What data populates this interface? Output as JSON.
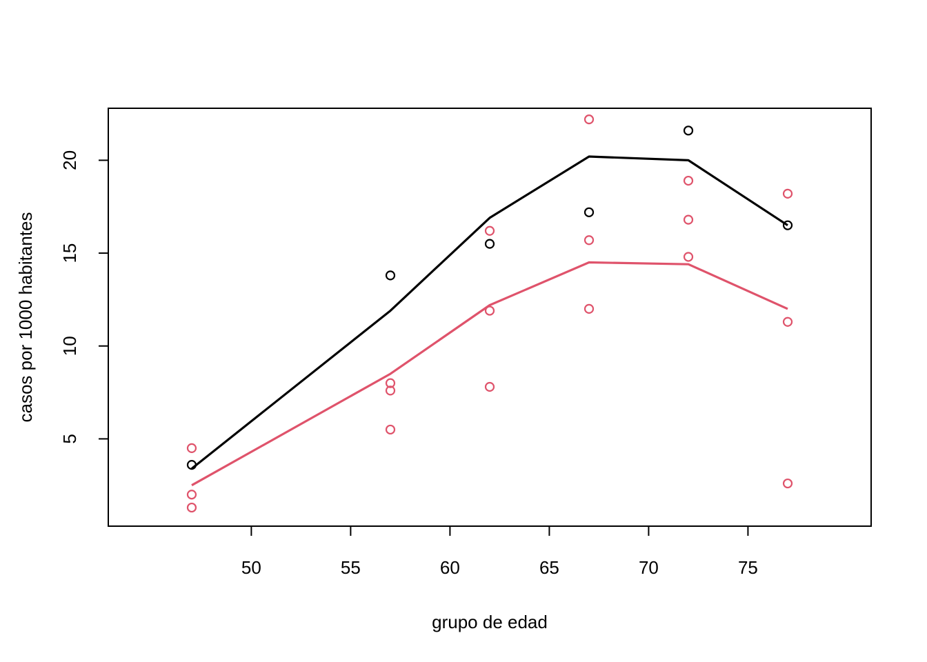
{
  "chart_data": {
    "type": "scatter",
    "title": "",
    "xlabel": "grupo de edad",
    "ylabel": "casos por 1000 habitantes",
    "xlim": [
      42.8,
      81.2
    ],
    "ylim": [
      0.3,
      22.8
    ],
    "xticks": [
      50,
      55,
      60,
      65,
      70,
      75
    ],
    "yticks": [
      5,
      10,
      15,
      20
    ],
    "grid": false,
    "legend": "none",
    "series": [
      {
        "color": "#000000",
        "points": [
          {
            "x": 47,
            "y": 3.6
          },
          {
            "x": 57,
            "y": 13.8
          },
          {
            "x": 62,
            "y": 15.5
          },
          {
            "x": 67,
            "y": 17.2
          },
          {
            "x": 72,
            "y": 21.6
          },
          {
            "x": 77,
            "y": 16.5
          }
        ],
        "line": [
          {
            "x": 47,
            "y": 3.4
          },
          {
            "x": 57,
            "y": 11.9
          },
          {
            "x": 62,
            "y": 16.9
          },
          {
            "x": 67,
            "y": 20.2
          },
          {
            "x": 72,
            "y": 20.0
          },
          {
            "x": 77,
            "y": 16.5
          }
        ]
      },
      {
        "color": "#DF536B",
        "points": [
          {
            "x": 47,
            "y": 4.5
          },
          {
            "x": 47,
            "y": 2.0
          },
          {
            "x": 47,
            "y": 1.3
          },
          {
            "x": 57,
            "y": 8.0
          },
          {
            "x": 57,
            "y": 7.6
          },
          {
            "x": 57,
            "y": 5.5
          },
          {
            "x": 62,
            "y": 16.2
          },
          {
            "x": 62,
            "y": 11.9
          },
          {
            "x": 62,
            "y": 7.8
          },
          {
            "x": 67,
            "y": 22.2
          },
          {
            "x": 67,
            "y": 15.7
          },
          {
            "x": 67,
            "y": 12.0
          },
          {
            "x": 72,
            "y": 18.9
          },
          {
            "x": 72,
            "y": 16.8
          },
          {
            "x": 72,
            "y": 14.8
          },
          {
            "x": 77,
            "y": 18.2
          },
          {
            "x": 77,
            "y": 11.3
          },
          {
            "x": 77,
            "y": 2.6
          }
        ],
        "line": [
          {
            "x": 47,
            "y": 2.5
          },
          {
            "x": 57,
            "y": 8.5
          },
          {
            "x": 62,
            "y": 12.2
          },
          {
            "x": 67,
            "y": 14.5
          },
          {
            "x": 72,
            "y": 14.4
          },
          {
            "x": 77,
            "y": 12.0
          }
        ]
      }
    ]
  }
}
